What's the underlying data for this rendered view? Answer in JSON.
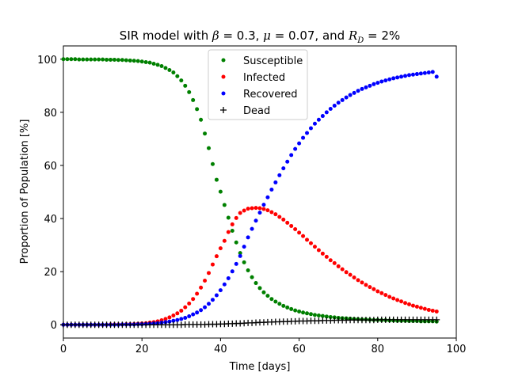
{
  "chart_data": {
    "type": "scatter",
    "title": {
      "prefix": "SIR model with ",
      "beta_symbol": "β",
      "beta_value": " = 0.3, ",
      "mu_symbol": "μ",
      "mu_value": " = 0.07, and ",
      "rd_symbol": "R",
      "rd_subscript": "D",
      "rd_value": " = 2%"
    },
    "xlabel": "Time [days]",
    "ylabel": "Proportion of Population [%]",
    "xlim": [
      0,
      100
    ],
    "ylim": [
      -5,
      105
    ],
    "xticks": [
      0,
      20,
      40,
      60,
      80,
      100
    ],
    "yticks": [
      0,
      20,
      40,
      60,
      80,
      100
    ],
    "grid": false,
    "legend_position": "top-center",
    "x": [
      0,
      1,
      2,
      3,
      4,
      5,
      6,
      7,
      8,
      9,
      10,
      11,
      12,
      13,
      14,
      15,
      16,
      17,
      18,
      19,
      20,
      21,
      22,
      23,
      24,
      25,
      26,
      27,
      28,
      29,
      30,
      31,
      32,
      33,
      34,
      35,
      36,
      37,
      38,
      39,
      40,
      41,
      42,
      43,
      44,
      45,
      46,
      47,
      48,
      49,
      50,
      51,
      52,
      53,
      54,
      55,
      56,
      57,
      58,
      59,
      60,
      61,
      62,
      63,
      64,
      65,
      66,
      67,
      68,
      69,
      70,
      71,
      72,
      73,
      74,
      75,
      76,
      77,
      78,
      79,
      80,
      81,
      82,
      83,
      84,
      85,
      86,
      87,
      88,
      89,
      90,
      91,
      92,
      93,
      94,
      95
    ],
    "series": [
      {
        "name": "Susceptible",
        "color": "#008000",
        "marker": "dot",
        "values": [
          100.0,
          100.0,
          100.0,
          100.0,
          99.9,
          99.9,
          99.9,
          99.9,
          99.9,
          99.9,
          99.9,
          99.8,
          99.8,
          99.8,
          99.7,
          99.7,
          99.6,
          99.5,
          99.4,
          99.3,
          99.1,
          98.9,
          98.7,
          98.3,
          97.9,
          97.4,
          96.7,
          95.9,
          95.0,
          93.6,
          92.0,
          90.0,
          87.6,
          84.6,
          81.2,
          77.2,
          72.0,
          66.5,
          60.5,
          54.6,
          50.1,
          45.1,
          40.3,
          35.4,
          31.0,
          27.0,
          23.5,
          20.5,
          17.9,
          15.7,
          13.8,
          12.2,
          10.9,
          9.7,
          8.7,
          7.9,
          7.1,
          6.5,
          5.9,
          5.4,
          5.0,
          4.6,
          4.3,
          4.0,
          3.7,
          3.5,
          3.3,
          3.1,
          2.9,
          2.8,
          2.6,
          2.5,
          2.4,
          2.3,
          2.2,
          2.1,
          2.0,
          2.0,
          1.9,
          1.8,
          1.8,
          1.7,
          1.7,
          1.6,
          1.6,
          1.5,
          1.5,
          1.5,
          1.4,
          1.4,
          1.4,
          1.3,
          1.3,
          1.3,
          1.3,
          1.2
        ]
      },
      {
        "name": "Infected",
        "color": "#ff0000",
        "marker": "dot",
        "values": [
          0.0,
          0.0,
          0.0,
          0.0,
          0.0,
          0.0,
          0.0,
          0.0,
          0.0,
          0.0,
          0.0,
          0.0,
          0.1,
          0.1,
          0.1,
          0.1,
          0.2,
          0.2,
          0.3,
          0.4,
          0.5,
          0.6,
          0.8,
          1.0,
          1.3,
          1.7,
          2.2,
          2.8,
          3.5,
          4.3,
          5.3,
          6.6,
          8.0,
          9.7,
          11.7,
          14.0,
          16.6,
          19.5,
          22.7,
          25.8,
          28.8,
          31.6,
          34.9,
          37.8,
          40.2,
          42.1,
          43.0,
          43.7,
          43.9,
          44.0,
          43.9,
          43.6,
          43.1,
          42.4,
          41.6,
          40.6,
          39.6,
          38.4,
          37.2,
          36.0,
          34.7,
          33.4,
          32.0,
          30.7,
          29.4,
          28.1,
          26.8,
          25.6,
          24.3,
          23.2,
          22.0,
          20.9,
          19.8,
          18.8,
          17.8,
          16.8,
          15.9,
          15.0,
          14.2,
          13.4,
          12.6,
          11.9,
          11.2,
          10.5,
          9.9,
          9.3,
          8.8,
          8.2,
          7.7,
          7.2,
          6.8,
          6.4,
          6.0,
          5.6,
          5.3,
          5.0
        ]
      },
      {
        "name": "Recovered",
        "color": "#0000ff",
        "marker": "dot",
        "values": [
          0.0,
          0.0,
          0.0,
          0.0,
          0.0,
          0.0,
          0.0,
          0.0,
          0.0,
          0.0,
          0.0,
          0.0,
          0.0,
          0.0,
          0.0,
          0.1,
          0.1,
          0.1,
          0.1,
          0.2,
          0.2,
          0.3,
          0.4,
          0.5,
          0.6,
          0.8,
          1.0,
          1.2,
          1.5,
          1.8,
          2.2,
          2.6,
          3.2,
          3.9,
          4.6,
          5.5,
          6.6,
          7.9,
          9.4,
          11.1,
          13.0,
          15.2,
          17.5,
          20.1,
          22.9,
          25.9,
          29.4,
          32.9,
          36.1,
          39.2,
          42.2,
          45.2,
          48.0,
          50.9,
          53.6,
          56.3,
          58.9,
          61.4,
          63.9,
          66.2,
          68.3,
          70.4,
          72.2,
          74.0,
          75.7,
          77.2,
          78.6,
          80.0,
          81.3,
          82.5,
          83.6,
          84.6,
          85.6,
          86.5,
          87.3,
          88.1,
          88.8,
          89.4,
          90.0,
          90.6,
          91.1,
          91.6,
          92.0,
          92.4,
          92.8,
          93.1,
          93.4,
          93.7,
          94.0,
          94.2,
          94.4,
          94.6,
          94.8,
          95.0,
          95.2,
          93.4
        ]
      },
      {
        "name": "Dead",
        "color": "#000000",
        "marker": "plus",
        "values": [
          0.0,
          0.0,
          0.0,
          0.0,
          0.0,
          0.0,
          0.0,
          0.0,
          0.0,
          0.0,
          0.0,
          0.0,
          0.0,
          0.0,
          0.0,
          0.0,
          0.0,
          0.0,
          0.0,
          0.0,
          0.0,
          0.0,
          0.0,
          0.0,
          0.0,
          0.0,
          0.0,
          0.0,
          0.0,
          0.0,
          0.0,
          0.1,
          0.1,
          0.1,
          0.1,
          0.1,
          0.1,
          0.2,
          0.2,
          0.2,
          0.3,
          0.3,
          0.4,
          0.4,
          0.5,
          0.5,
          0.6,
          0.7,
          0.7,
          0.8,
          0.9,
          0.9,
          1.0,
          1.0,
          1.1,
          1.1,
          1.2,
          1.2,
          1.3,
          1.3,
          1.4,
          1.4,
          1.4,
          1.5,
          1.5,
          1.5,
          1.6,
          1.6,
          1.6,
          1.7,
          1.7,
          1.7,
          1.7,
          1.8,
          1.8,
          1.8,
          1.8,
          1.8,
          1.8,
          1.8,
          1.9,
          1.9,
          1.9,
          1.9,
          1.9,
          1.9,
          1.9,
          1.9,
          1.9,
          1.9,
          1.9,
          1.9,
          1.9,
          1.9,
          1.9,
          1.9
        ]
      }
    ]
  }
}
